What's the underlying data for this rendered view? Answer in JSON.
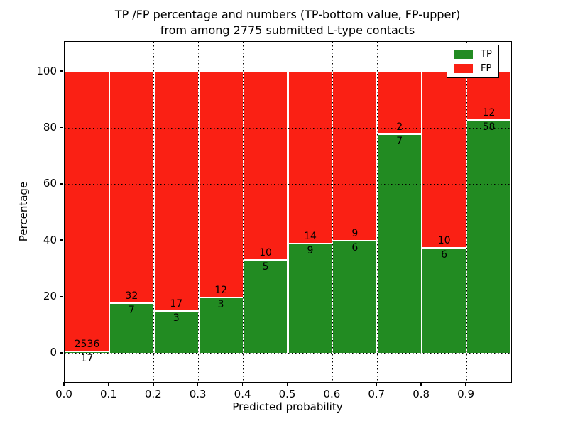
{
  "title": {
    "line1": "TP /FP percentage and numbers (TP-bottom value, FP-upper)",
    "line2": "from among 2775 submitted L-type contacts"
  },
  "chart_data": {
    "type": "bar",
    "subtype": "stacked-percentage",
    "title": "TP /FP percentage and numbers (TP-bottom value, FP-upper) from among 2775 submitted L-type contacts",
    "total_contacts": 2775,
    "xlabel": "Predicted probability",
    "ylabel": "Percentage",
    "xlim": [
      0.0,
      1.0
    ],
    "ylim": [
      -10.1,
      110.6
    ],
    "bin_width": 0.1,
    "xticks": [
      "0.0",
      "0.1",
      "0.2",
      "0.3",
      "0.4",
      "0.5",
      "0.6",
      "0.7",
      "0.8",
      "0.9"
    ],
    "yticks": [
      0,
      20,
      40,
      60,
      80,
      100
    ],
    "grid": {
      "style": "dotted",
      "color": "#000000",
      "on_top": true,
      "axes": "both"
    },
    "colors": {
      "tp": "#228b22",
      "fp": "#fa2014",
      "bar_edge": "#ffffff",
      "background": "#ffffff",
      "axis": "#000000"
    },
    "categories": [
      "0.0-0.1",
      "0.1-0.2",
      "0.2-0.3",
      "0.3-0.4",
      "0.4-0.5",
      "0.5-0.6",
      "0.6-0.7",
      "0.7-0.8",
      "0.8-0.9",
      "0.9-1.0"
    ],
    "series": [
      {
        "name": "TP",
        "counts": [
          17,
          7,
          3,
          3,
          5,
          9,
          6,
          7,
          6,
          58
        ],
        "pct": [
          0.67,
          17.95,
          15.0,
          20.0,
          33.33,
          39.13,
          40.0,
          77.78,
          37.5,
          82.86
        ]
      },
      {
        "name": "FP",
        "counts": [
          2536,
          32,
          17,
          12,
          10,
          14,
          9,
          2,
          10,
          12
        ],
        "pct": [
          99.33,
          82.05,
          85.0,
          80.0,
          66.67,
          60.87,
          60.0,
          22.22,
          62.5,
          17.14
        ]
      }
    ],
    "annotation_rule": "FP count printed just above TP/FP boundary, TP count just below",
    "legend": {
      "position": "upper-right",
      "entries": [
        {
          "label": "TP",
          "color": "#228b22"
        },
        {
          "label": "FP",
          "color": "#fa2014"
        }
      ]
    }
  }
}
